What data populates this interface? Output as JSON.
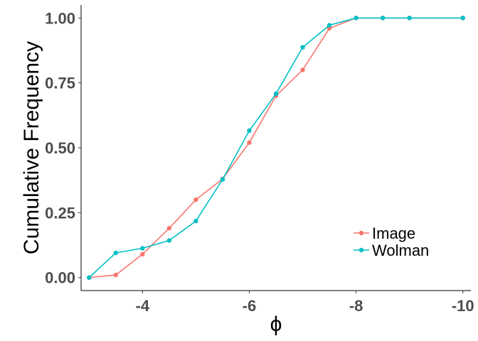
{
  "chart_data": {
    "type": "line",
    "xlabel": "ϕ",
    "ylabel": "Cumulative Frequency",
    "x_reversed": true,
    "xlim": [
      -2.85,
      -10.15
    ],
    "ylim": [
      -0.05,
      1.05
    ],
    "x_ticks": [
      -4,
      -6,
      -8,
      -10
    ],
    "x_tick_labels": [
      "-4",
      "-6",
      "-8",
      "-10"
    ],
    "y_ticks": [
      0,
      0.25,
      0.5,
      0.75,
      1.0
    ],
    "y_tick_labels": [
      "0.00",
      "0.25",
      "0.50",
      "0.75",
      "1.00"
    ],
    "grid": false,
    "legend_position": "bottom-right",
    "x": [
      -3,
      -3.5,
      -4,
      -4.5,
      -5,
      -5.5,
      -6,
      -6.5,
      -7,
      -7.5,
      -8,
      -8.5,
      -9,
      -10
    ],
    "series": [
      {
        "name": "Image",
        "color": "#f8766d",
        "values": [
          0.0,
          0.01,
          0.09,
          0.19,
          0.3,
          0.38,
          0.52,
          0.7,
          0.8,
          0.96,
          1.0,
          1.0,
          1.0,
          1.0
        ]
      },
      {
        "name": "Wolman",
        "color": "#00bfc4",
        "values": [
          0.0,
          0.095,
          0.113,
          0.143,
          0.218,
          0.378,
          0.566,
          0.708,
          0.887,
          0.972,
          1.0,
          1.0,
          1.0,
          1.0
        ]
      }
    ]
  }
}
